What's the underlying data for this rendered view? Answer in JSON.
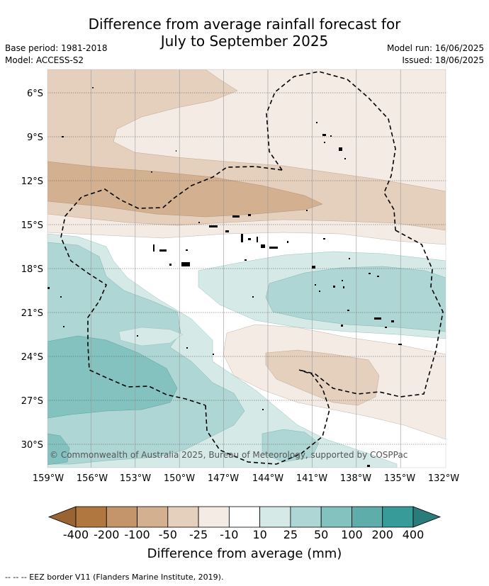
{
  "title_line1": "Difference from average rainfall forecast for",
  "title_line2": "July to September 2025",
  "meta": {
    "base_period": "Base period: 1981-2018",
    "model": "Model: ACCESS-S2",
    "model_run": "Model run: 16/06/2025",
    "issued": "Issued: 18/06/2025"
  },
  "latitude_labels": [
    "6°S",
    "9°S",
    "12°S",
    "15°S",
    "18°S",
    "21°S",
    "24°S",
    "27°S",
    "30°S"
  ],
  "longitude_labels": [
    "159°W",
    "156°W",
    "153°W",
    "150°W",
    "147°W",
    "144°W",
    "141°W",
    "138°W",
    "135°W",
    "132°W"
  ],
  "copyright": "© Commonwealth of Australia 2025, Bureau of Meteorology, supported by COSPPac",
  "colorbar": {
    "title": "Difference from average (mm)",
    "tick_labels": [
      "-400",
      "-200",
      "-100",
      "-50",
      "-25",
      "-10",
      "10",
      "25",
      "50",
      "100",
      "200",
      "400"
    ],
    "colors": [
      "#b07840",
      "#c4956a",
      "#d3b08f",
      "#e5cfbd",
      "#f4ebe4",
      "#ffffff",
      "#d5e9e7",
      "#aed6d4",
      "#84c2bf",
      "#5fadab",
      "#379c99"
    ],
    "extend_low_color": "#9a6332",
    "extend_high_color": "#2a7c7a"
  },
  "footnote": "-- -- -- EEZ border V11 (Flanders Marine Institute, 2019)."
}
